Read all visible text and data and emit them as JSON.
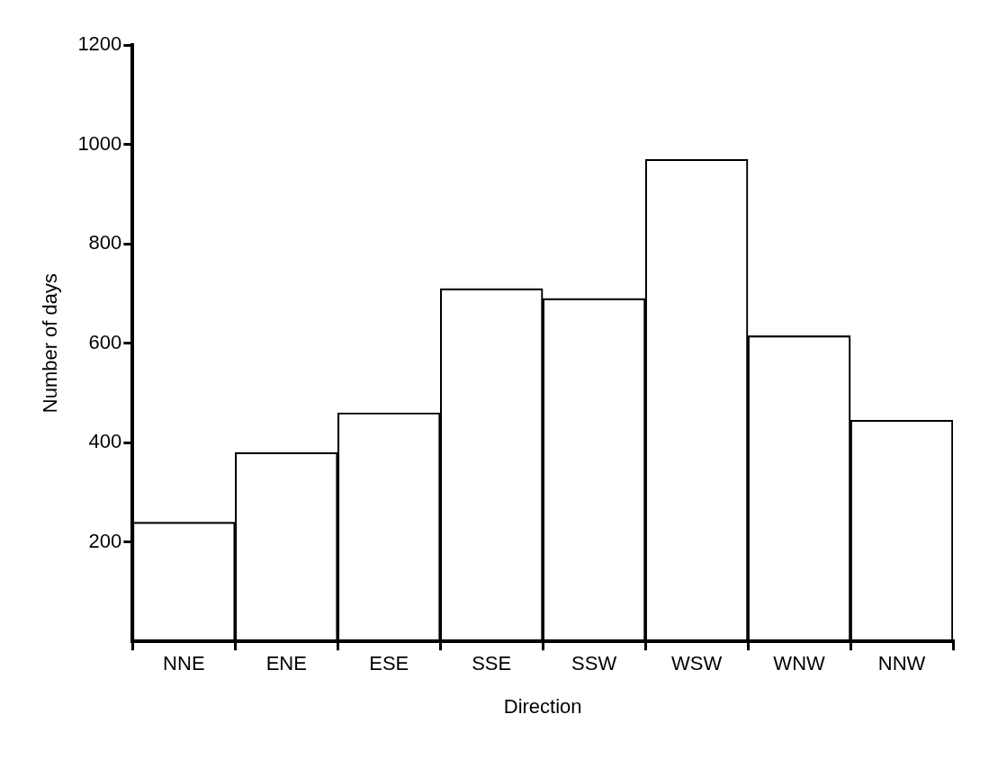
{
  "chart_data": {
    "type": "bar",
    "xlabel": "Direction",
    "ylabel": "Number of days",
    "categories": [
      "NNE",
      "ENE",
      "ESE",
      "SSE",
      "SSW",
      "WSW",
      "WNW",
      "NNW"
    ],
    "values": [
      240,
      380,
      460,
      710,
      690,
      970,
      615,
      445
    ],
    "color": "#000000",
    "ylim": [
      0,
      1200
    ],
    "yticks": [
      200,
      400,
      600,
      800,
      1000,
      1200
    ],
    "grid": false,
    "legend": false
  }
}
